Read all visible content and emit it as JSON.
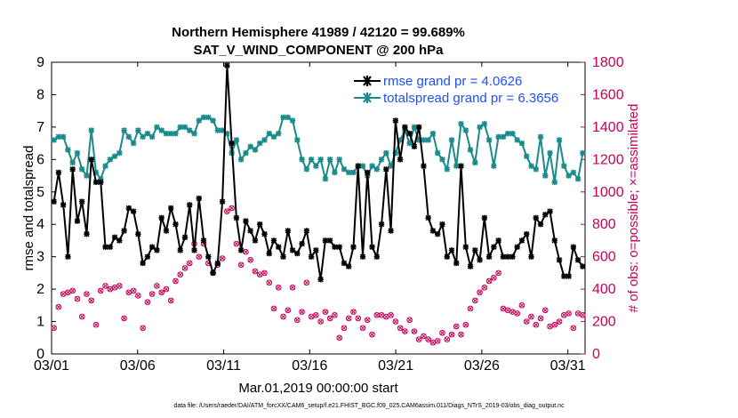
{
  "chart_data": {
    "type": "line",
    "title_line1": "Northern Hemisphere 41989 / 42120 = 99.689%",
    "title_line2": "SAT_V_WIND_COMPONENT @ 200 hPa",
    "xlabel": "Mar.01,2019 00:00:00 start",
    "ylabel_left": "rmse and totalspread",
    "ylabel_right": "# of obs: o=possible; ×=assimilated",
    "footer": "data file: /Users/raeder/DAI/ATM_forcXX/CAM6_setup/f.e21.FHIST_BGC.f09_025.CAM6assim.011/Diags_NTrS_2019-03/obs_diag_output.nc",
    "x_ticks": [
      {
        "v": 1,
        "label": "03/01"
      },
      {
        "v": 6,
        "label": "03/06"
      },
      {
        "v": 11,
        "label": "03/11"
      },
      {
        "v": 16,
        "label": "03/16"
      },
      {
        "v": 21,
        "label": "03/21"
      },
      {
        "v": 26,
        "label": "03/26"
      },
      {
        "v": 31,
        "label": "03/31"
      }
    ],
    "xlim": [
      1,
      32
    ],
    "ylim_left": [
      0,
      9
    ],
    "yticks_left": [
      "0",
      "1",
      "2",
      "3",
      "4",
      "5",
      "6",
      "7",
      "8",
      "9"
    ],
    "ylim_right": [
      0,
      1800
    ],
    "yticks_right": [
      "0",
      "200",
      "400",
      "600",
      "800",
      "1000",
      "1200",
      "1400",
      "1600",
      "1800"
    ],
    "colors": {
      "rmse": "#000000",
      "spread": "#1a8a8a",
      "obs": "#c8005a",
      "legend_text": "#1f4fff"
    },
    "series": [
      {
        "name": "rmse grand pr = 4.0626",
        "axis": "left",
        "values": [
          4.7,
          5.6,
          4.6,
          3.0,
          5.7,
          4.1,
          4.7,
          3.7,
          6.0,
          5.3,
          5.3,
          3.3,
          3.3,
          3.6,
          3.5,
          3.8,
          4.5,
          4.4,
          3.7,
          2.8,
          3.0,
          3.3,
          3.2,
          4.2,
          3.8,
          4.5,
          4.0,
          3.2,
          3.6,
          4.6,
          3.2,
          4.8,
          3.5,
          3.0,
          2.5,
          2.8,
          4.7,
          8.9,
          6.5,
          4.2,
          3.2,
          4.1,
          3.8,
          3.5,
          4.0,
          3.7,
          3.1,
          3.5,
          3.3,
          3.0,
          3.8,
          3.2,
          3.1,
          3.4,
          3.8,
          3.0,
          3.2,
          2.3,
          3.5,
          3.5,
          3.3,
          3.3,
          2.8,
          2.7,
          3.3,
          5.8,
          3.0,
          5.6,
          3.3,
          3.0,
          4.0,
          5.7,
          3.8,
          7.2,
          6.0,
          7.0,
          6.8,
          6.4,
          7.0,
          5.8,
          4.2,
          3.8,
          3.7,
          4.0,
          3.0,
          3.2,
          2.8,
          5.8,
          3.3,
          2.7,
          3.2,
          2.9,
          4.2,
          3.0,
          3.3,
          3.5,
          3.0,
          3.0,
          3.0,
          3.3,
          3.5,
          3.7,
          3.0,
          4.2,
          4.0,
          4.3,
          4.4,
          3.5,
          2.9,
          2.4,
          2.4,
          3.3,
          2.9,
          2.7
        ]
      },
      {
        "name": "totalspread grand pr = 6.3656",
        "axis": "left",
        "values": [
          6.6,
          6.7,
          6.7,
          6.3,
          5.9,
          6.2,
          5.7,
          5.5,
          6.9,
          5.6,
          5.4,
          5.8,
          6.0,
          6.1,
          6.2,
          6.9,
          6.7,
          6.5,
          6.9,
          6.7,
          6.8,
          6.7,
          7.0,
          6.9,
          6.8,
          6.8,
          6.8,
          7.0,
          7.0,
          6.9,
          6.8,
          7.2,
          7.3,
          7.3,
          7.2,
          6.9,
          6.9,
          6.8,
          6.2,
          6.6,
          6.0,
          6.2,
          6.4,
          6.3,
          6.5,
          6.6,
          6.8,
          6.7,
          6.8,
          7.3,
          7.3,
          7.2,
          6.6,
          6.0,
          5.7,
          6.0,
          5.8,
          6.0,
          5.4,
          6.0,
          5.6,
          6.0,
          5.7,
          5.6,
          5.6,
          5.8,
          5.8,
          5.5,
          5.8,
          5.7,
          6.0,
          6.2,
          5.8,
          6.2,
          6.6,
          6.9,
          6.5,
          7.0,
          6.6,
          6.6,
          6.6,
          6.8,
          6.2,
          6.0,
          5.7,
          6.6,
          5.8,
          7.1,
          6.9,
          6.3,
          5.9,
          7.0,
          7.1,
          6.6,
          5.8,
          6.7,
          6.7,
          6.8,
          6.8,
          6.6,
          6.5,
          6.1,
          5.8,
          5.7,
          6.7,
          5.5,
          6.2,
          5.3,
          6.6,
          5.8,
          5.5,
          5.6,
          5.4,
          6.2
        ]
      }
    ],
    "obs_count": {
      "axis": "right",
      "values": [
        160,
        290,
        370,
        380,
        390,
        340,
        230,
        370,
        330,
        180,
        390,
        420,
        400,
        410,
        420,
        220,
        380,
        390,
        360,
        160,
        320,
        370,
        420,
        380,
        400,
        330,
        450,
        490,
        530,
        560,
        680,
        600,
        680,
        560,
        500,
        550,
        590,
        880,
        900,
        680,
        550,
        630,
        580,
        510,
        490,
        500,
        440,
        280,
        410,
        230,
        270,
        410,
        210,
        260,
        440,
        230,
        240,
        200,
        260,
        220,
        240,
        100,
        160,
        220,
        260,
        220,
        160,
        210,
        120,
        240,
        240,
        230,
        240,
        200,
        160,
        140,
        210,
        140,
        90,
        110,
        90,
        70,
        80,
        130,
        90,
        120,
        170,
        120,
        180,
        280,
        330,
        380,
        410,
        450,
        470,
        500,
        280,
        270,
        260,
        250,
        300,
        200,
        230,
        180,
        220,
        270,
        170,
        180,
        200,
        240,
        250,
        160,
        250,
        240
      ]
    }
  },
  "legend": {
    "rmse_label": "rmse grand pr = 4.0626",
    "spread_label": "totalspread grand pr = 6.3656"
  }
}
